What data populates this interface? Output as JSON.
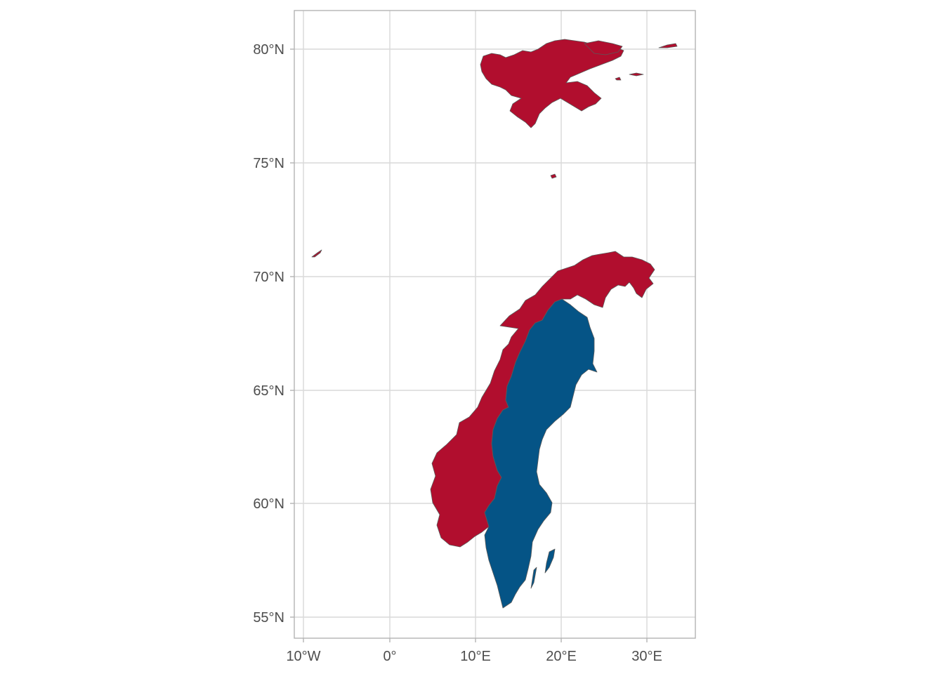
{
  "map": {
    "x_ticks": [
      {
        "lon": -10,
        "label": "10°W"
      },
      {
        "lon": 0,
        "label": "0°"
      },
      {
        "lon": 10,
        "label": "10°E"
      },
      {
        "lon": 20,
        "label": "20°E"
      },
      {
        "lon": 30,
        "label": "30°E"
      }
    ],
    "y_ticks": [
      {
        "lat": 80,
        "label": "80°N"
      },
      {
        "lat": 75,
        "label": "75°N"
      },
      {
        "lat": 70,
        "label": "70°N"
      },
      {
        "lat": 65,
        "label": "65°N"
      },
      {
        "lat": 60,
        "label": "60°N"
      },
      {
        "lat": 55,
        "label": "55°N"
      }
    ],
    "lon_range": [
      -11.2,
      35.8
    ],
    "lat_range": [
      54.2,
      81.8
    ],
    "grid": true,
    "regions": [
      {
        "name": "norway",
        "fill": "#B10E2E"
      },
      {
        "name": "sweden",
        "fill": "#055486"
      }
    ],
    "border_color": "#5a5a5a",
    "grid_color": "#d9d9d9",
    "panel_border_color": "#b3b3b3"
  }
}
